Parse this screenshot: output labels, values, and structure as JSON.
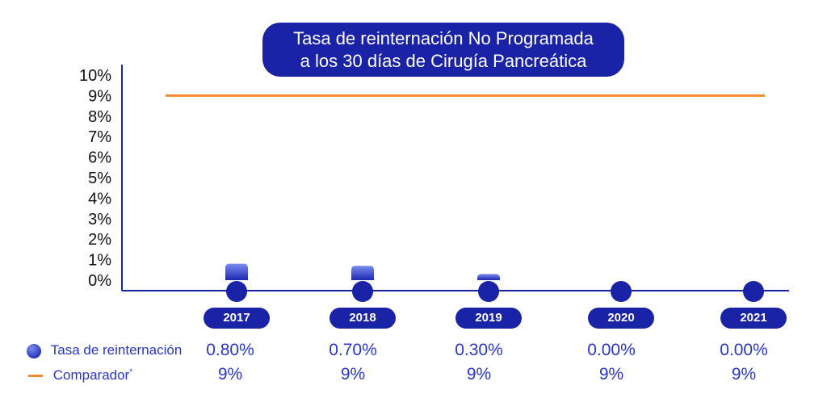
{
  "chart_data": {
    "type": "bar",
    "title": [
      "Tasa de reinternación No Programada",
      "a los 30 días de Cirugía Pancreática"
    ],
    "categories": [
      "2017",
      "2018",
      "2019",
      "2020",
      "2021"
    ],
    "ylim": [
      0,
      10
    ],
    "yticks": [
      "0%",
      "1%",
      "2%",
      "3%",
      "4%",
      "5%",
      "6%",
      "7%",
      "8%",
      "9%",
      "10%"
    ],
    "series": [
      {
        "name": "Tasa de reinternación",
        "type": "bar",
        "values": [
          0.8,
          0.7,
          0.3,
          0.0,
          0.0
        ],
        "labels": [
          "0.80%",
          "0.70%",
          "0.30%",
          "0.00%",
          "0.00%"
        ],
        "color": "#2a35c9"
      },
      {
        "name": "Comparador*",
        "type": "line",
        "values": [
          9,
          9,
          9,
          9,
          9
        ],
        "labels": [
          "9%",
          "9%",
          "9%",
          "9%",
          "9%"
        ],
        "color": "#f5892f"
      }
    ],
    "legend": "bottom-left table",
    "grid": false
  }
}
